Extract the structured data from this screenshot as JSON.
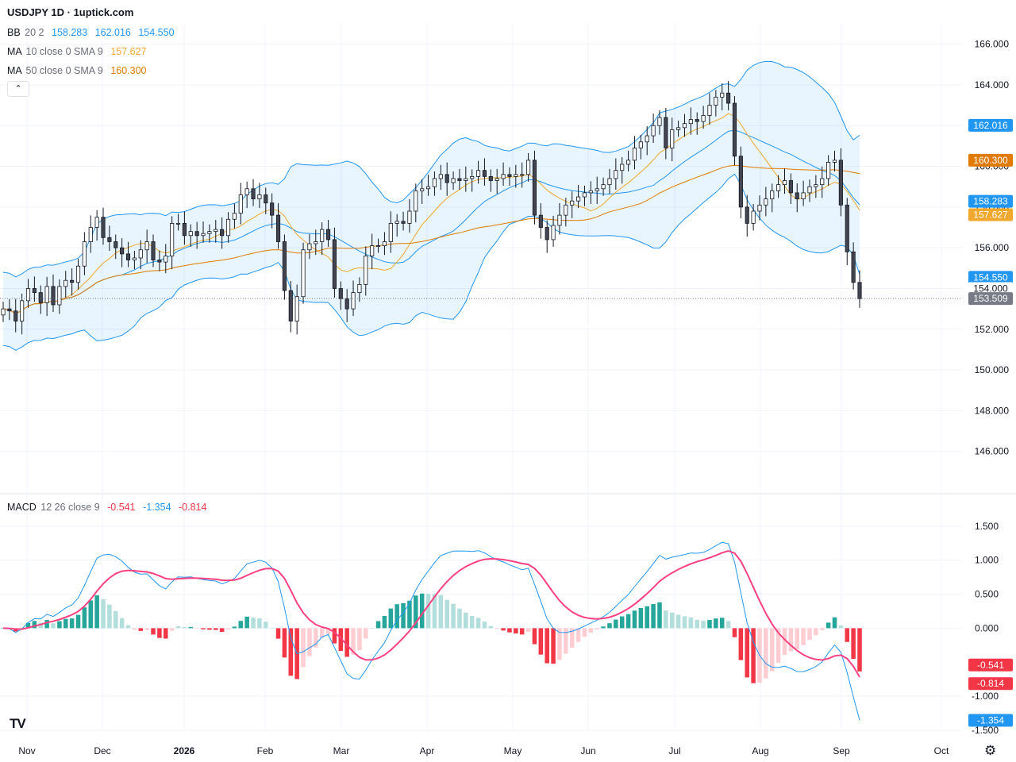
{
  "header": {
    "title": "USDJPY 1D · 1uptick.com",
    "bb": {
      "name": "BB",
      "params": "20 2",
      "values": [
        "158.283",
        "162.016",
        "154.550"
      ],
      "color": "#2196f3"
    },
    "ma10": {
      "name": "MA",
      "params": "10 close 0 SMA 9",
      "value": "157.627",
      "color": "#f0a82e"
    },
    "ma50": {
      "name": "MA",
      "params": "50 close 0 SMA 9",
      "value": "160.300",
      "color": "#e07b00"
    },
    "collapse_icon": "chevron-up-icon"
  },
  "macd_legend": {
    "name": "MACD",
    "params": "12 26 close 9",
    "values": [
      "-0.541",
      "-1.354",
      "-0.814"
    ],
    "colors": [
      "#f23645",
      "#2196f3",
      "#f23645"
    ]
  },
  "chart_data": {
    "type": "candlestick",
    "symbol": "USDJPY",
    "interval": "1D",
    "price_axis": {
      "ticks": [
        "166.000",
        "164.000",
        "162.000",
        "160.000",
        "158.000",
        "156.000",
        "154.000",
        "152.000",
        "150.000",
        "148.000",
        "146.000"
      ],
      "range": [
        144.0,
        167.0
      ]
    },
    "macd_axis": {
      "ticks": [
        "1.500",
        "1.000",
        "0.500",
        "0.000",
        "-1.000",
        "-1.500"
      ],
      "range": [
        -1.5,
        1.65
      ]
    },
    "time_axis": [
      "Nov",
      "Dec",
      "2026",
      "Feb",
      "Mar",
      "Apr",
      "May",
      "Jun",
      "Jul",
      "Aug",
      "Sep",
      "Oct"
    ],
    "price_badges": [
      {
        "label": "162.016",
        "value": 162.016,
        "color": "#2196f3"
      },
      {
        "label": "160.300",
        "value": 160.3,
        "color": "#e07b00"
      },
      {
        "label": "158.283",
        "value": 158.283,
        "color": "#2196f3"
      },
      {
        "label": "157.627",
        "value": 157.627,
        "color": "#f0a82e"
      },
      {
        "label": "154.550",
        "value": 154.55,
        "color": "#2196f3"
      },
      {
        "label": "154.000",
        "value": 154.0,
        "color": "#ffffff"
      },
      {
        "label": "153.509",
        "value": 153.509,
        "color": "#787b86"
      }
    ],
    "macd_badges": [
      {
        "label": "-0.541",
        "value": -0.541,
        "color": "#f23645"
      },
      {
        "label": "-0.814",
        "value": -0.814,
        "color": "#f23645"
      },
      {
        "label": "-1.354",
        "value": -1.354,
        "color": "#2196f3"
      }
    ],
    "last_price": 153.509,
    "close_series": [
      153.0,
      152.9,
      152.4,
      153.4,
      154.0,
      153.8,
      153.3,
      154.1,
      153.2,
      154.1,
      154.4,
      154.3,
      155.1,
      156.3,
      157.0,
      157.5,
      156.5,
      156.3,
      156.0,
      155.7,
      155.4,
      155.5,
      155.9,
      156.3,
      155.4,
      155.3,
      155.6,
      157.2,
      157.2,
      156.6,
      156.8,
      156.6,
      156.7,
      156.8,
      156.9,
      156.6,
      157.4,
      157.7,
      158.6,
      158.9,
      158.4,
      158.6,
      158.2,
      157.6,
      156.3,
      153.9,
      152.4,
      153.6,
      155.9,
      156.2,
      156.3,
      156.9,
      156.4,
      154.0,
      153.5,
      153.0,
      153.8,
      154.2,
      155.6,
      156.1,
      156.1,
      156.3,
      157.2,
      157.3,
      157.2,
      157.8,
      158.8,
      158.9,
      159.0,
      159.4,
      159.6,
      159.2,
      159.4,
      159.3,
      159.4,
      159.5,
      159.8,
      159.5,
      159.3,
      159.4,
      159.6,
      159.5,
      159.6,
      159.6,
      160.3,
      157.6,
      157.0,
      156.4,
      157.1,
      157.6,
      158.1,
      158.3,
      158.5,
      158.7,
      158.8,
      158.9,
      159.1,
      159.4,
      159.8,
      160.1,
      160.3,
      160.9,
      161.2,
      161.5,
      162.0,
      162.4,
      160.9,
      161.8,
      161.9,
      162.1,
      162.3,
      162.2,
      162.5,
      163.0,
      163.4,
      163.6,
      163.1,
      160.5,
      158.0,
      157.2,
      157.8,
      158.1,
      158.4,
      158.8,
      159.1,
      159.3,
      158.7,
      158.4,
      158.7,
      159.0,
      159.1,
      159.4,
      160.2,
      160.3,
      158.1,
      155.8,
      154.3,
      153.5
    ],
    "macd_series": {
      "macd_last": -1.354,
      "signal_last": -0.814,
      "hist_last": -0.541
    }
  }
}
